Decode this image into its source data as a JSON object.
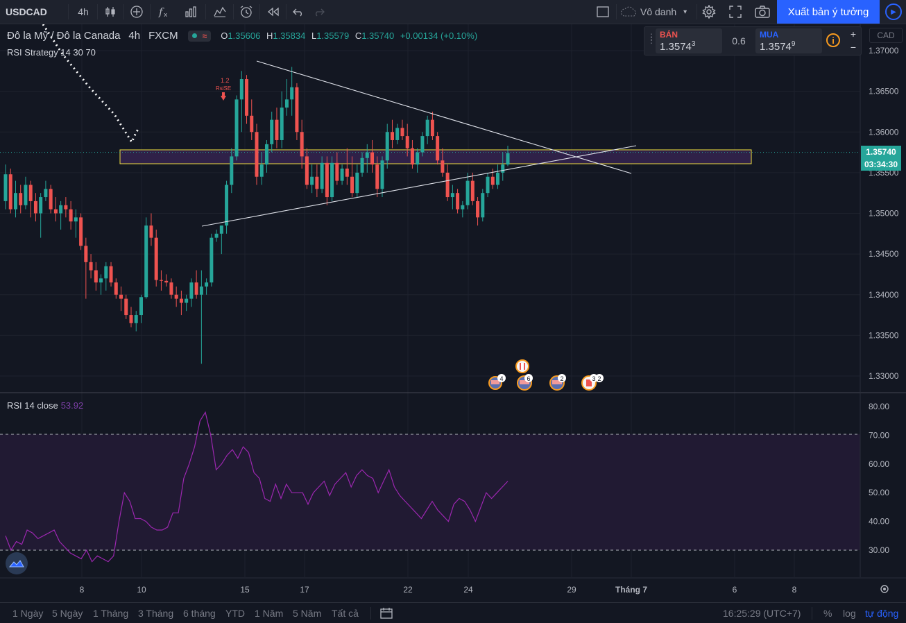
{
  "toolbar": {
    "symbol": "USDCAD",
    "interval": "4h",
    "profile": "Vô danh",
    "publish_label": "Xuất bản ý tưởng"
  },
  "legend": {
    "title": "Đô la Mỹ / Đô la Canada",
    "interval": "4h",
    "exchange": "FXCM",
    "o_key": "O",
    "o_val": "1.35606",
    "h_key": "H",
    "h_val": "1.35834",
    "l_key": "L",
    "l_val": "1.35579",
    "c_key": "C",
    "c_val": "1.35740",
    "change": "+0.00134 (+0.10%)",
    "strategy": "RSI Strategy 14 30 70",
    "wave_icon": "≈"
  },
  "trade": {
    "sell_label": "BÁN",
    "sell_price": "1.3574",
    "sell_super": "3",
    "spread": "0.6",
    "buy_label": "MUA",
    "buy_price": "1.3574",
    "buy_super": "9",
    "currency": "CAD",
    "plus": "+",
    "minus": "−",
    "info": "i"
  },
  "colors": {
    "up": "#26a69a",
    "down": "#ef5350",
    "bg": "#131722",
    "rsi_line": "#9c27b0",
    "rsi_band": "#211a33",
    "highlight_border": "#f0e040",
    "accent": "#2962ff"
  },
  "rsi": {
    "label": "RSI 14 close",
    "value": "53.92"
  },
  "price_axis": {
    "ticks": [
      "1.37000",
      "1.36500",
      "1.36000",
      "1.35500",
      "1.35000",
      "1.34500",
      "1.34000",
      "1.33500",
      "1.33000"
    ],
    "last_price": "1.35740",
    "countdown": "03:34:30"
  },
  "rsi_axis": {
    "ticks": [
      "80.00",
      "70.00",
      "60.00",
      "50.00",
      "40.00",
      "30.00"
    ]
  },
  "time_axis": {
    "ticks": [
      "8",
      "10",
      "15",
      "17",
      "22",
      "24",
      "29",
      "Tháng 7",
      "6",
      "8"
    ]
  },
  "signal": {
    "label1": "1.2",
    "label2": "RsiSE"
  },
  "events": [
    {
      "count": "4"
    },
    {
      "count": "6"
    },
    {
      "count": "2"
    },
    {
      "count": "3"
    },
    {
      "count": "2"
    }
  ],
  "ranges": [
    "1 Ngày",
    "5 Ngày",
    "1 Tháng",
    "3 Tháng",
    "6 tháng",
    "YTD",
    "1 Năm",
    "5 Năm",
    "Tất cả"
  ],
  "status": {
    "time": "16:25:29 (UTC+7)",
    "percent": "%",
    "log": "log",
    "auto": "tự động"
  },
  "chart_data": {
    "type": "candlestick",
    "ylim": [
      1.3275,
      1.3715
    ],
    "yticks": [
      1.37,
      1.365,
      1.36,
      1.355,
      1.35,
      1.345,
      1.34,
      1.335,
      1.33
    ],
    "candles": [
      [
        1.3515,
        1.356,
        1.3505,
        1.3548
      ],
      [
        1.3548,
        1.3555,
        1.35,
        1.3505
      ],
      [
        1.3505,
        1.354,
        1.3495,
        1.3525
      ],
      [
        1.3525,
        1.3535,
        1.35,
        1.351
      ],
      [
        1.351,
        1.3545,
        1.3505,
        1.3535
      ],
      [
        1.3535,
        1.354,
        1.3495,
        1.3515
      ],
      [
        1.3515,
        1.3525,
        1.349,
        1.35
      ],
      [
        1.35,
        1.3525,
        1.347,
        1.352
      ],
      [
        1.352,
        1.354,
        1.3515,
        1.353
      ],
      [
        1.353,
        1.3535,
        1.35,
        1.3505
      ],
      [
        1.3505,
        1.352,
        1.349,
        1.35
      ],
      [
        1.35,
        1.3515,
        1.348,
        1.351
      ],
      [
        1.351,
        1.352,
        1.3495,
        1.3505
      ],
      [
        1.3505,
        1.3515,
        1.348,
        1.349
      ],
      [
        1.349,
        1.3505,
        1.347,
        1.3495
      ],
      [
        1.3495,
        1.35,
        1.3455,
        1.346
      ],
      [
        1.346,
        1.347,
        1.3395,
        1.344
      ],
      [
        1.344,
        1.345,
        1.342,
        1.343
      ],
      [
        1.343,
        1.344,
        1.3405,
        1.3415
      ],
      [
        1.3415,
        1.3425,
        1.34,
        1.342
      ],
      [
        1.342,
        1.344,
        1.3405,
        1.3435
      ],
      [
        1.3435,
        1.344,
        1.341,
        1.3415
      ],
      [
        1.3415,
        1.342,
        1.3395,
        1.34
      ],
      [
        1.34,
        1.341,
        1.338,
        1.3395
      ],
      [
        1.3395,
        1.34,
        1.337,
        1.3375
      ],
      [
        1.3375,
        1.3385,
        1.336,
        1.3365
      ],
      [
        1.3365,
        1.338,
        1.3355,
        1.3375
      ],
      [
        1.3375,
        1.34,
        1.3365,
        1.3397
      ],
      [
        1.3397,
        1.3495,
        1.3395,
        1.3485
      ],
      [
        1.3485,
        1.35,
        1.346,
        1.347
      ],
      [
        1.347,
        1.348,
        1.341,
        1.3418
      ],
      [
        1.3418,
        1.343,
        1.3405,
        1.3417
      ],
      [
        1.3417,
        1.3425,
        1.341,
        1.3415
      ],
      [
        1.3415,
        1.342,
        1.3395,
        1.34
      ],
      [
        1.34,
        1.341,
        1.3385,
        1.3395
      ],
      [
        1.3395,
        1.3405,
        1.3375,
        1.339
      ],
      [
        1.339,
        1.34,
        1.338,
        1.3395
      ],
      [
        1.3395,
        1.342,
        1.3385,
        1.3415
      ],
      [
        1.3415,
        1.343,
        1.3395,
        1.34
      ],
      [
        1.34,
        1.343,
        1.3315,
        1.341
      ],
      [
        1.341,
        1.342,
        1.34,
        1.3415
      ],
      [
        1.3415,
        1.3475,
        1.341,
        1.347
      ],
      [
        1.347,
        1.348,
        1.3465,
        1.3475
      ],
      [
        1.3475,
        1.3485,
        1.345,
        1.3485
      ],
      [
        1.3485,
        1.354,
        1.3475,
        1.3535
      ],
      [
        1.3535,
        1.358,
        1.3525,
        1.357
      ],
      [
        1.357,
        1.3645,
        1.3565,
        1.364
      ],
      [
        1.364,
        1.3675,
        1.36,
        1.3665
      ],
      [
        1.3665,
        1.367,
        1.361,
        1.362
      ],
      [
        1.362,
        1.364,
        1.359,
        1.36
      ],
      [
        1.36,
        1.361,
        1.3535,
        1.3545
      ],
      [
        1.3545,
        1.3575,
        1.3535,
        1.356
      ],
      [
        1.356,
        1.359,
        1.355,
        1.3585
      ],
      [
        1.3585,
        1.3625,
        1.3575,
        1.3615
      ],
      [
        1.3615,
        1.363,
        1.358,
        1.359
      ],
      [
        1.359,
        1.365,
        1.358,
        1.363
      ],
      [
        1.363,
        1.3665,
        1.362,
        1.364
      ],
      [
        1.364,
        1.368,
        1.362,
        1.3655
      ],
      [
        1.3655,
        1.366,
        1.359,
        1.36
      ],
      [
        1.36,
        1.3615,
        1.3555,
        1.357
      ],
      [
        1.357,
        1.358,
        1.353,
        1.3535
      ],
      [
        1.3535,
        1.356,
        1.3525,
        1.3545
      ],
      [
        1.3545,
        1.356,
        1.352,
        1.353
      ],
      [
        1.353,
        1.357,
        1.3525,
        1.3562
      ],
      [
        1.3562,
        1.357,
        1.351,
        1.352
      ],
      [
        1.352,
        1.357,
        1.3515,
        1.3562
      ],
      [
        1.3562,
        1.3575,
        1.3535,
        1.354
      ],
      [
        1.354,
        1.356,
        1.3535,
        1.3555
      ],
      [
        1.3555,
        1.358,
        1.3535,
        1.3545
      ],
      [
        1.3545,
        1.357,
        1.352,
        1.3525
      ],
      [
        1.3525,
        1.356,
        1.352,
        1.355
      ],
      [
        1.355,
        1.3575,
        1.3545,
        1.3568
      ],
      [
        1.3568,
        1.3585,
        1.355,
        1.3575
      ],
      [
        1.3575,
        1.359,
        1.355,
        1.356
      ],
      [
        1.356,
        1.357,
        1.352,
        1.353
      ],
      [
        1.353,
        1.357,
        1.352,
        1.3565
      ],
      [
        1.3565,
        1.361,
        1.3555,
        1.36
      ],
      [
        1.36,
        1.3615,
        1.358,
        1.359
      ],
      [
        1.359,
        1.361,
        1.3585,
        1.3605
      ],
      [
        1.3605,
        1.3615,
        1.359,
        1.3595
      ],
      [
        1.3595,
        1.361,
        1.357,
        1.358
      ],
      [
        1.358,
        1.359,
        1.3555,
        1.356
      ],
      [
        1.356,
        1.358,
        1.355,
        1.3575
      ],
      [
        1.3575,
        1.36,
        1.357,
        1.3595
      ],
      [
        1.3595,
        1.362,
        1.3585,
        1.3615
      ],
      [
        1.3615,
        1.3625,
        1.359,
        1.3595
      ],
      [
        1.3595,
        1.36,
        1.356,
        1.3565
      ],
      [
        1.3565,
        1.358,
        1.3545,
        1.355
      ],
      [
        1.355,
        1.356,
        1.3515,
        1.352
      ],
      [
        1.352,
        1.3535,
        1.3505,
        1.3525
      ],
      [
        1.3525,
        1.353,
        1.35,
        1.3505
      ],
      [
        1.3505,
        1.3515,
        1.3495,
        1.351
      ],
      [
        1.351,
        1.355,
        1.3505,
        1.354
      ],
      [
        1.354,
        1.355,
        1.351,
        1.3515
      ],
      [
        1.3515,
        1.352,
        1.3485,
        1.3495
      ],
      [
        1.3495,
        1.353,
        1.349,
        1.3525
      ],
      [
        1.3525,
        1.355,
        1.352,
        1.3545
      ],
      [
        1.3545,
        1.3555,
        1.353,
        1.3535
      ],
      [
        1.3535,
        1.356,
        1.353,
        1.355
      ],
      [
        1.355,
        1.3575,
        1.354,
        1.356
      ],
      [
        1.356,
        1.3583,
        1.3558,
        1.3574
      ]
    ],
    "rsi": {
      "ylim": [
        20,
        82
      ],
      "overbought": 70,
      "oversold": 30,
      "values": [
        35,
        30,
        33,
        32,
        37,
        36,
        34,
        35,
        36,
        37,
        33,
        31,
        29,
        28,
        27,
        30,
        26,
        28,
        27,
        26,
        28,
        40,
        50,
        47,
        41,
        41,
        40,
        38,
        37,
        37,
        38,
        43,
        43,
        55,
        60,
        66,
        75,
        78,
        70,
        58,
        60,
        63,
        65,
        62,
        66,
        64,
        57,
        55,
        48,
        47,
        53,
        48,
        53,
        50,
        50,
        50,
        46,
        50,
        52,
        54,
        49,
        53,
        55,
        57,
        52,
        56,
        58,
        56,
        55,
        50,
        54,
        58,
        52,
        49,
        47,
        45,
        43,
        41,
        44,
        47,
        44,
        42,
        40,
        46,
        48,
        47,
        44,
        40,
        45,
        50,
        48,
        50,
        52,
        54
      ]
    }
  }
}
